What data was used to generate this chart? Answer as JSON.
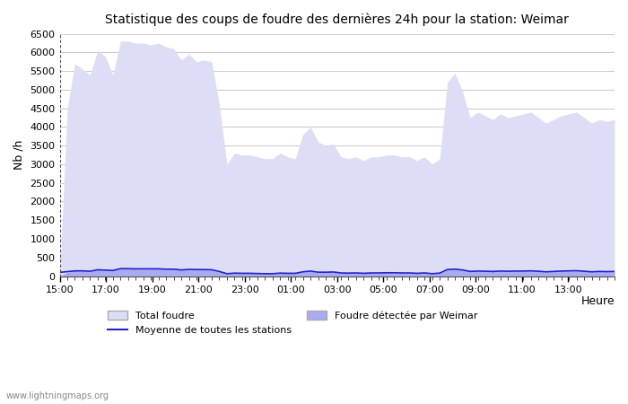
{
  "title": "Statistique des coups de foudre des dernières 24h pour la station: Weimar",
  "xlabel": "Heure",
  "ylabel": "Nb /h",
  "background_color": "#ffffff",
  "plot_bg_color": "#ffffff",
  "grid_color": "#cccccc",
  "ylim": [
    0,
    6500
  ],
  "yticks": [
    0,
    500,
    1000,
    1500,
    2000,
    2500,
    3000,
    3500,
    4000,
    4500,
    5000,
    5500,
    6000,
    6500
  ],
  "x_labels": [
    "15:00",
    "17:00",
    "19:00",
    "21:00",
    "23:00",
    "01:00",
    "03:00",
    "05:00",
    "07:00",
    "09:00",
    "11:00",
    "13:00"
  ],
  "watermark": "www.lightningmaps.org",
  "fill_total_color": "#ddddf5",
  "fill_weimar_color": "#aaaaee",
  "line_moyenne_color": "#2222cc",
  "total_foudre": [
    0,
    4500,
    5700,
    5550,
    5400,
    6050,
    5900,
    5400,
    6300,
    6300,
    6250,
    6250,
    6200,
    6250,
    6150,
    6100,
    5800,
    5950,
    5750,
    5800,
    5750,
    4600,
    3000,
    3300,
    3250,
    3250,
    3200,
    3150,
    3150,
    3300,
    3200,
    3150,
    3800,
    4000,
    3600,
    3500,
    3550,
    3200,
    3150,
    3200,
    3100,
    3200,
    3200,
    3250,
    3250,
    3200,
    3200,
    3100,
    3200,
    3000,
    3150,
    5200,
    5450,
    4950,
    4250,
    4400,
    4300,
    4200,
    4350,
    4250,
    4300,
    4350,
    4400,
    4250,
    4100,
    4200,
    4300,
    4350,
    4400,
    4250,
    4100,
    4200,
    4150,
    4200
  ],
  "weimar_foudre": [
    0,
    100,
    150,
    130,
    120,
    170,
    160,
    150,
    200,
    200,
    190,
    190,
    190,
    190,
    180,
    180,
    160,
    175,
    170,
    170,
    165,
    120,
    60,
    80,
    75,
    75,
    70,
    65,
    65,
    80,
    75,
    75,
    110,
    130,
    100,
    100,
    105,
    80,
    75,
    80,
    70,
    80,
    80,
    85,
    85,
    80,
    80,
    70,
    80,
    60,
    75,
    170,
    180,
    160,
    120,
    130,
    125,
    120,
    130,
    125,
    130,
    130,
    135,
    125,
    110,
    120,
    130,
    135,
    140,
    125,
    110,
    120,
    115,
    120
  ],
  "moyenne_foudre": [
    100,
    120,
    140,
    140,
    130,
    170,
    160,
    150,
    200,
    200,
    195,
    195,
    195,
    195,
    185,
    185,
    165,
    180,
    175,
    175,
    170,
    125,
    65,
    80,
    75,
    75,
    70,
    65,
    65,
    80,
    75,
    75,
    115,
    135,
    105,
    105,
    110,
    85,
    80,
    85,
    75,
    85,
    85,
    90,
    90,
    85,
    85,
    75,
    85,
    65,
    80,
    175,
    185,
    165,
    125,
    135,
    130,
    125,
    135,
    130,
    135,
    135,
    140,
    130,
    115,
    125,
    135,
    140,
    145,
    130,
    115,
    125,
    120,
    125
  ],
  "n_points": 74
}
